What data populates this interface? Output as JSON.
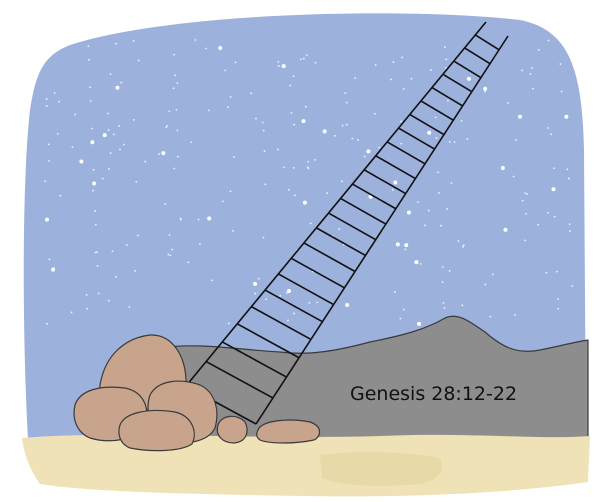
{
  "caption": "Genesis 28:12-22"
}
